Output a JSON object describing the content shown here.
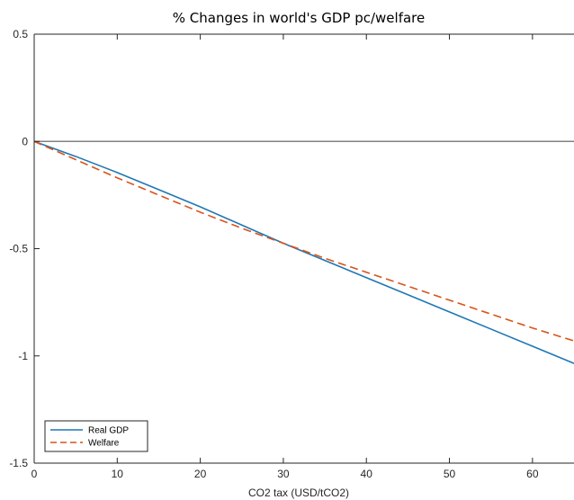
{
  "chart_data": {
    "type": "line",
    "title": "% Changes in world's GDP pc/welfare",
    "xlabel": "CO2 tax (USD/tCO2)",
    "ylabel": "",
    "xlim": [
      0,
      65
    ],
    "ylim": [
      -1.5,
      0.5
    ],
    "xticks": [
      0,
      10,
      20,
      30,
      40,
      50,
      60
    ],
    "yticks": [
      0.5,
      0,
      -0.5,
      -1,
      -1.5
    ],
    "xtick_labels": [
      "0",
      "10",
      "20",
      "30",
      "40",
      "50",
      "60"
    ],
    "ytick_labels": [
      "0.5",
      "0",
      "-0.5",
      "-1",
      "-1.5"
    ],
    "grid": false,
    "legend_position": "bottom-left",
    "reference_line": {
      "y": 0,
      "color": "#808080"
    },
    "series": [
      {
        "name": "Real GDP",
        "style": "solid",
        "color": "#1f77b4",
        "x": [
          0,
          5,
          10,
          15,
          20,
          25,
          30,
          35,
          40,
          45,
          50,
          55,
          60,
          65
        ],
        "y": [
          0,
          -0.07,
          -0.145,
          -0.225,
          -0.305,
          -0.39,
          -0.475,
          -0.555,
          -0.635,
          -0.715,
          -0.795,
          -0.875,
          -0.955,
          -1.035
        ]
      },
      {
        "name": "Welfare",
        "style": "dashed",
        "color": "#d95319",
        "x": [
          0,
          5,
          10,
          15,
          20,
          25,
          30,
          35,
          40,
          45,
          50,
          55,
          60,
          65
        ],
        "y": [
          0,
          -0.085,
          -0.17,
          -0.25,
          -0.33,
          -0.405,
          -0.475,
          -0.545,
          -0.61,
          -0.675,
          -0.74,
          -0.805,
          -0.87,
          -0.93
        ]
      }
    ]
  }
}
